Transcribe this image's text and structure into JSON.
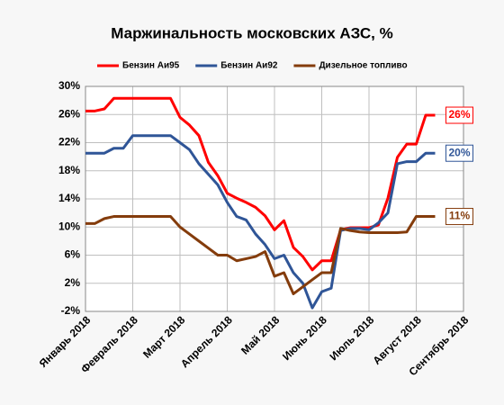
{
  "chart_data": {
    "type": "line",
    "title": "Маржинальность  московских АЗС, %",
    "x": [
      0,
      0.2,
      0.4,
      0.6,
      0.8,
      1.0,
      1.2,
      1.4,
      1.6,
      1.8,
      2.0,
      2.2,
      2.4,
      2.6,
      2.8,
      3.0,
      3.2,
      3.4,
      3.6,
      3.8,
      4.0,
      4.2,
      4.4,
      4.6,
      4.8,
      5.0,
      5.2,
      5.4,
      5.6,
      5.8,
      6.0,
      6.2,
      6.4,
      6.6,
      6.8,
      7.0,
      7.2,
      7.4
    ],
    "series": [
      {
        "name": "Бензин Аи95",
        "color": "#ff0000",
        "end_label": "26%",
        "values": [
          26.5,
          26.5,
          26.8,
          28.3,
          28.3,
          28.3,
          28.3,
          28.3,
          28.3,
          28.3,
          25.6,
          24.5,
          23,
          19.2,
          17.3,
          14.8,
          14.1,
          13.5,
          12.8,
          11.6,
          9.6,
          10.9,
          7.1,
          5.8,
          3.9,
          5.2,
          5.2,
          9.6,
          9.9,
          9.9,
          9.9,
          10.3,
          14.1,
          19.9,
          21.8,
          21.8,
          25.9,
          25.9
        ]
      },
      {
        "name": "Бензин Аи92",
        "color": "#2f5597",
        "end_label": "20%",
        "values": [
          20.5,
          20.5,
          20.5,
          21.2,
          21.2,
          23,
          23,
          23,
          23,
          23,
          22,
          21,
          19,
          17.5,
          16,
          13.5,
          11.5,
          11,
          9,
          7.5,
          5.5,
          6,
          3.5,
          2,
          -1.5,
          0.8,
          1.3,
          9.5,
          9.8,
          9.8,
          9.6,
          10.6,
          12,
          19,
          19.3,
          19.3,
          20.5,
          20.5
        ]
      },
      {
        "name": "Дизельное топливо",
        "color": "#843c0c",
        "end_label": "11%",
        "values": [
          10.5,
          10.5,
          11.2,
          11.5,
          11.5,
          11.5,
          11.5,
          11.5,
          11.5,
          11.5,
          10,
          9,
          8,
          7,
          6,
          6,
          5.2,
          5.5,
          5.8,
          6.5,
          3,
          3.5,
          0.5,
          1.5,
          2.5,
          3.5,
          3.5,
          9.8,
          9.5,
          9.3,
          9.2,
          9.2,
          9.2,
          9.2,
          9.3,
          11.5,
          11.5,
          11.5
        ]
      }
    ],
    "xlim": [
      0,
      8
    ],
    "xticks": [
      {
        "value": 0,
        "label": "Январь 2018"
      },
      {
        "value": 1,
        "label": "Февраль 2018"
      },
      {
        "value": 2,
        "label": "Март 2018"
      },
      {
        "value": 3,
        "label": "Апрель 2018"
      },
      {
        "value": 4,
        "label": "Май 2018"
      },
      {
        "value": 5,
        "label": "Июнь 2018"
      },
      {
        "value": 6,
        "label": "Июль 2018"
      },
      {
        "value": 7,
        "label": "Август 2018"
      },
      {
        "value": 8,
        "label": "Сентябрь 2018"
      }
    ],
    "ylim": [
      -2,
      30
    ],
    "yticks": [
      {
        "value": -2,
        "label": "-2%"
      },
      {
        "value": 2,
        "label": "2%"
      },
      {
        "value": 6,
        "label": "6%"
      },
      {
        "value": 10,
        "label": "10%"
      },
      {
        "value": 14,
        "label": "14%"
      },
      {
        "value": 18,
        "label": "18%"
      },
      {
        "value": 22,
        "label": "22%"
      },
      {
        "value": 26,
        "label": "26%"
      },
      {
        "value": 30,
        "label": "30%"
      }
    ],
    "grid": true
  }
}
